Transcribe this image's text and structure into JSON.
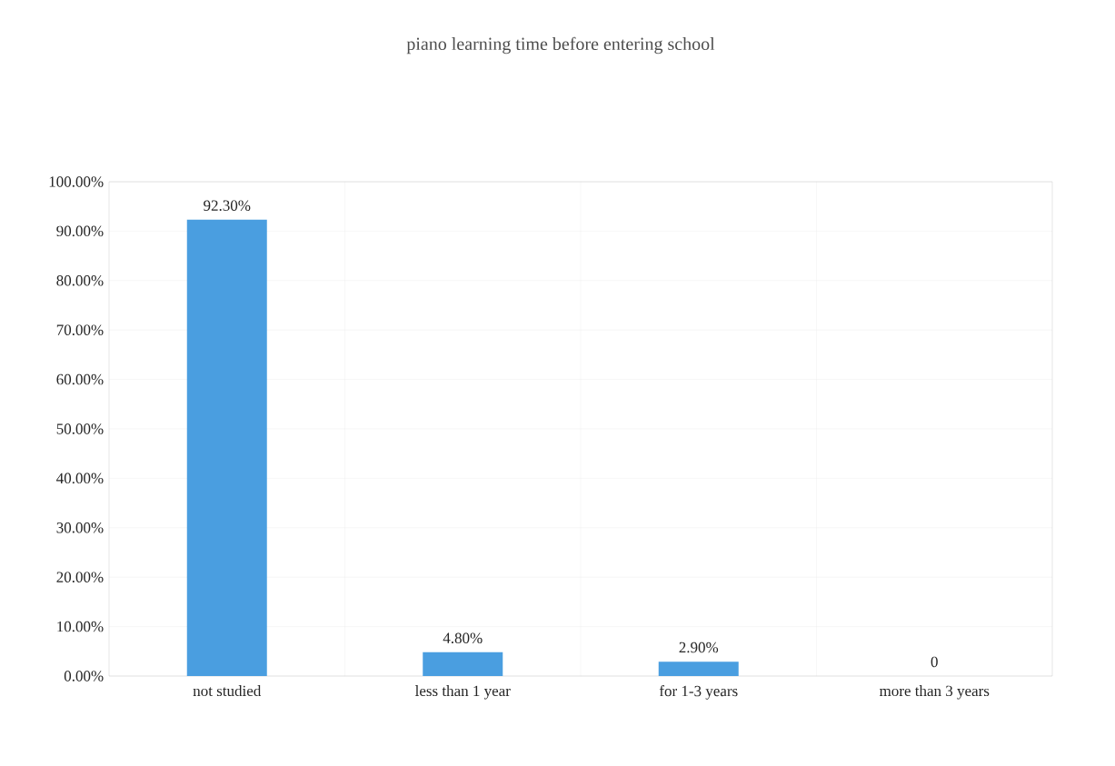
{
  "chart_data": {
    "type": "bar",
    "title": "piano learning time before entering school",
    "categories": [
      "not studied",
      "less than 1 year",
      "for 1-3 years",
      "more than 3 years"
    ],
    "values": [
      92.3,
      4.8,
      2.9,
      0
    ],
    "value_labels": [
      "92.30%",
      "4.80%",
      "2.90%",
      "0"
    ],
    "color": "#4a9ee0",
    "ylim": [
      0,
      100
    ],
    "yticks": [
      {
        "value": 0,
        "label": "0.00%"
      },
      {
        "value": 10,
        "label": "10.00%"
      },
      {
        "value": 20,
        "label": "20.00%"
      },
      {
        "value": 30,
        "label": "30.00%"
      },
      {
        "value": 40,
        "label": "40.00%"
      },
      {
        "value": 50,
        "label": "50.00%"
      },
      {
        "value": 60,
        "label": "60.00%"
      },
      {
        "value": 70,
        "label": "70.00%"
      },
      {
        "value": 80,
        "label": "80.00%"
      },
      {
        "value": 90,
        "label": "90.00%"
      },
      {
        "value": 100,
        "label": "100.00%"
      }
    ],
    "grid": true
  }
}
